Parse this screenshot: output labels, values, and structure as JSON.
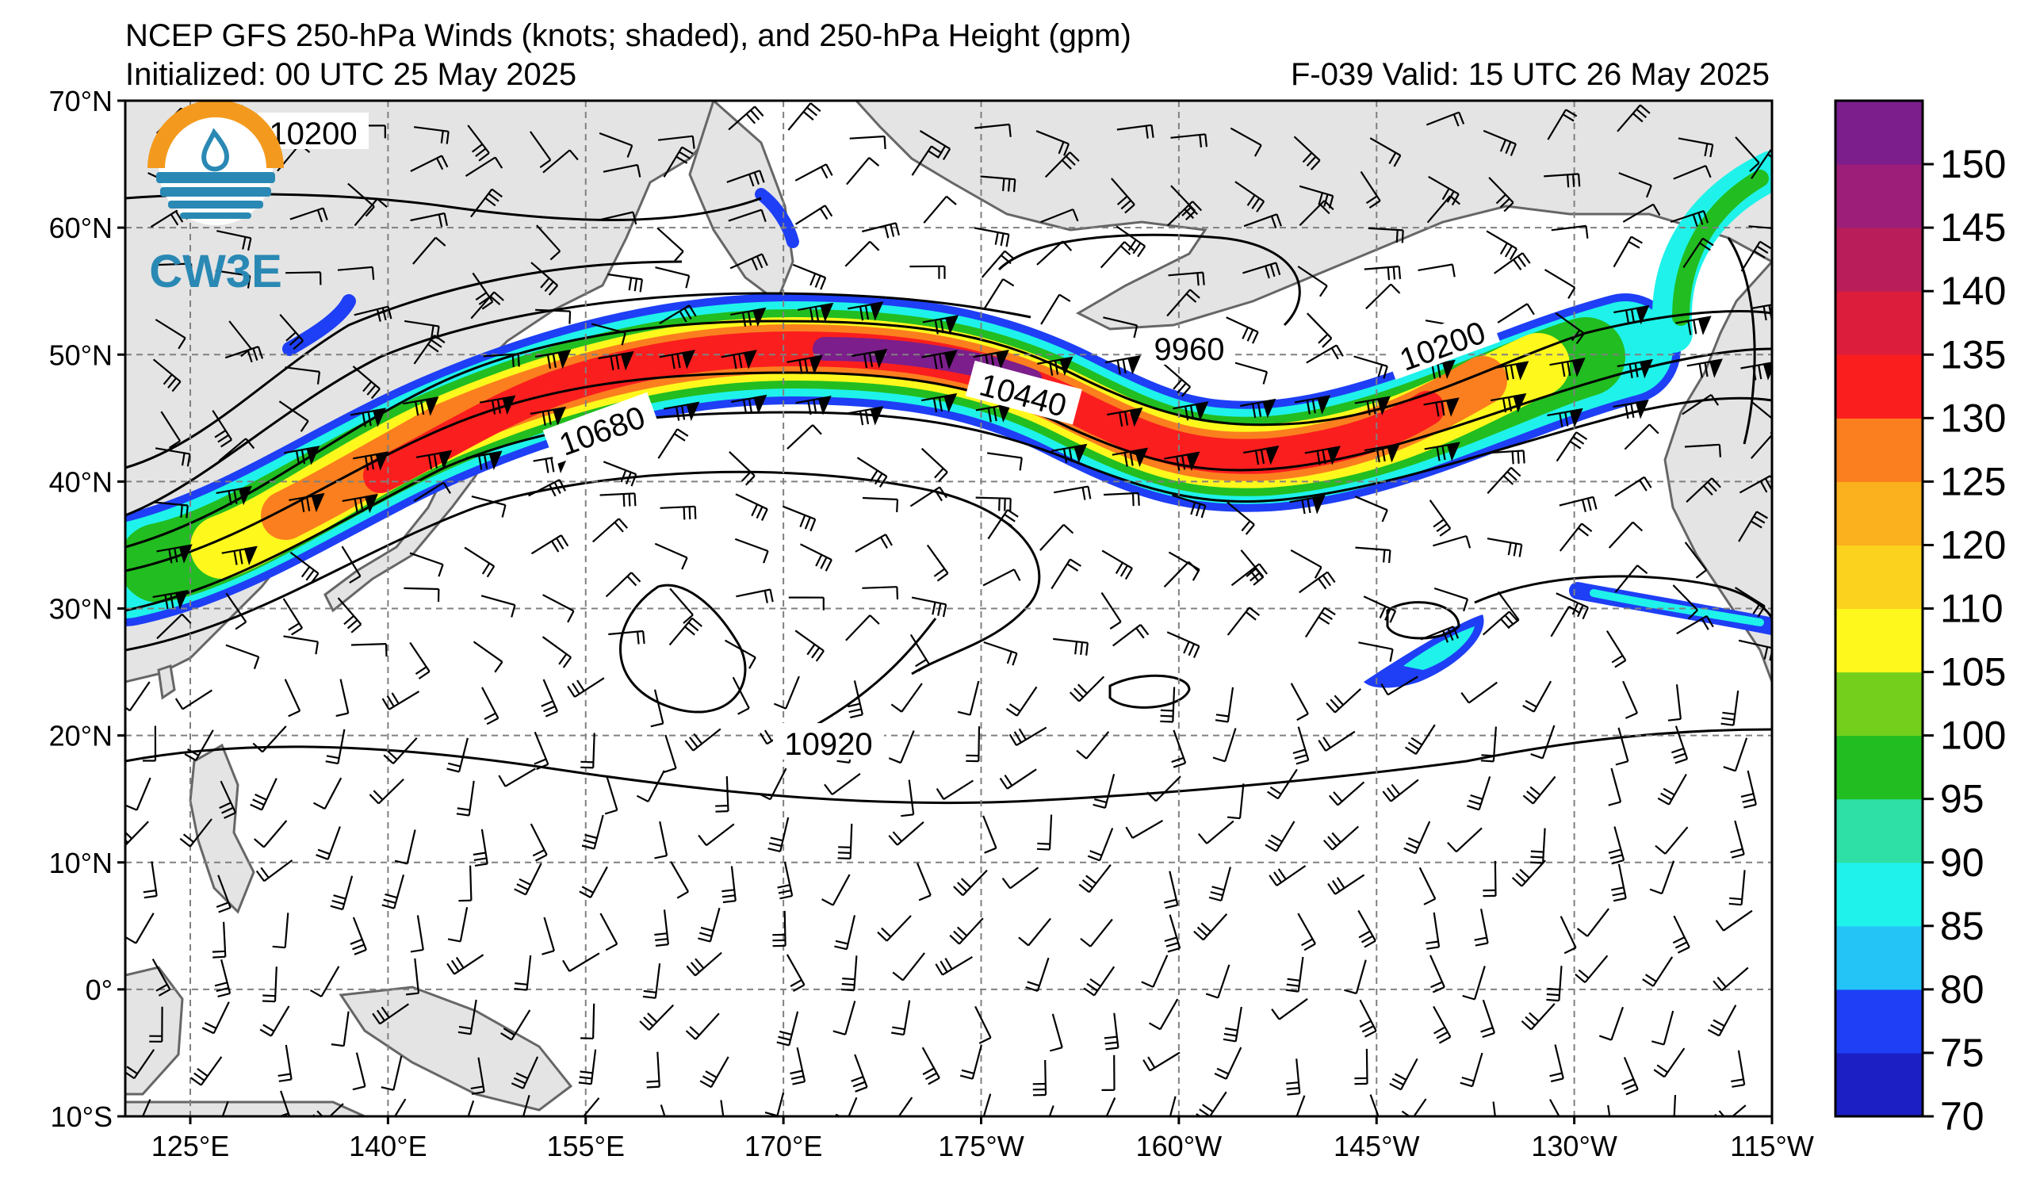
{
  "header": {
    "title": "NCEP GFS 250-hPa Winds (knots; shaded), and 250-hPa Height (gpm)",
    "initialized": "Initialized: 00 UTC 25 May 2025",
    "forecast": "F-039  Valid: 15 UTC 26 May 2025"
  },
  "logo": {
    "text": "CW3E",
    "ring_color": "#f39a1e",
    "wave_color": "#2a89b4"
  },
  "axes": {
    "lat_ticks": [
      "70°N",
      "60°N",
      "50°N",
      "40°N",
      "30°N",
      "20°N",
      "10°N",
      "0°",
      "10°S"
    ],
    "lon_ticks": [
      "125°E",
      "140°E",
      "155°E",
      "170°E",
      "175°W",
      "160°W",
      "145°W",
      "130°W",
      "115°W"
    ]
  },
  "contour_labels": [
    "10200",
    "10680",
    "10440",
    "9960",
    "10200",
    "10920"
  ],
  "colorbar": {
    "ticks": [
      "70",
      "75",
      "80",
      "85",
      "90",
      "95",
      "100",
      "105",
      "110",
      "120",
      "125",
      "130",
      "135",
      "140",
      "145",
      "150"
    ],
    "colors": [
      "#1c1fc4",
      "#1e3ff5",
      "#25c4f7",
      "#1ff2ea",
      "#2ee0a6",
      "#22bd20",
      "#74cf1c",
      "#fff81d",
      "#fbd21d",
      "#fbb01e",
      "#fb7f1e",
      "#fb1e1e",
      "#dc1e3c",
      "#b91e5a",
      "#9c1e78",
      "#7c1e8c"
    ]
  },
  "colors": {
    "land": "#e4e4e4",
    "coast": "#666666",
    "grid": "#808080"
  }
}
